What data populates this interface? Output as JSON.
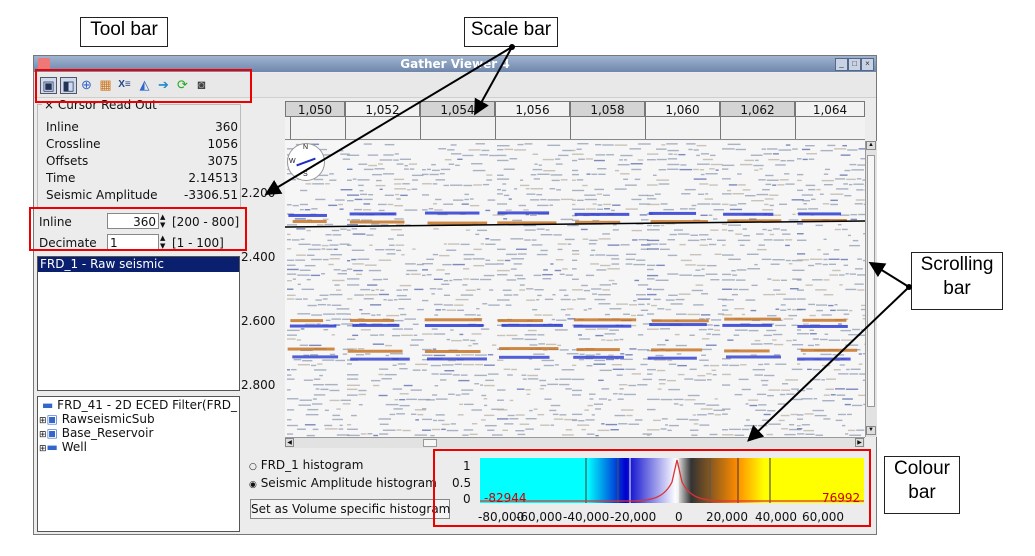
{
  "callouts": {
    "tool_bar": "Tool bar",
    "scale_bar": "Scale bar",
    "scrolling_bar": [
      "Scrolling",
      "bar"
    ],
    "colour_bar": [
      "Colour",
      "bar"
    ]
  },
  "window": {
    "title": "Gather Viewer 4"
  },
  "toolbar": {
    "icons": [
      "view-icon",
      "view2-icon",
      "crosshair-icon",
      "layers-icon",
      "xs-icon",
      "pick-icon",
      "arrow-right-icon",
      "refresh-icon",
      "camera-icon"
    ]
  },
  "cursor_readout": {
    "title": "Cursor Read Out",
    "rows": [
      {
        "label": "Inline",
        "value": "360"
      },
      {
        "label": "Crossline",
        "value": "1056"
      },
      {
        "label": "Offsets",
        "value": "3075"
      },
      {
        "label": "Time",
        "value": "2.14513"
      },
      {
        "label": "Seismic Amplitude",
        "value": "-3306.51"
      }
    ]
  },
  "controls": {
    "inline_label": "Inline",
    "inline_value": "360",
    "inline_range": "[200 - 800]",
    "decimate_label": "Decimate",
    "decimate_value": "1",
    "decimate_range": "[1 - 100]"
  },
  "volume_list": {
    "selected": "FRD_1 - Raw seismic"
  },
  "tree": [
    "FRD_41 - 2D ECED Filter(FRD_",
    "RawseismicSub",
    "Base_Reservoir",
    "Well"
  ],
  "histogram_options": {
    "opt1": "FRD_1 histogram",
    "opt2": "Seismic Amplitude histogram",
    "button": "Set as Volume specific histogram"
  },
  "scale": {
    "crosslines": [
      "1,050",
      "1,052",
      "1,054",
      "1,056",
      "1,058",
      "1,060",
      "1,062",
      "1,064"
    ],
    "times": [
      "2.200",
      "2.400",
      "2.600",
      "2.800"
    ],
    "compass": [
      "N",
      "W",
      "S"
    ]
  },
  "colour_bar": {
    "min": "-82944",
    "max": "76992",
    "yticks": [
      "1",
      "0.5",
      "0"
    ],
    "xticks": [
      "-80,000",
      "-60,000",
      "-40,000",
      "-20,000",
      "0",
      "20,000",
      "40,000",
      "60,000"
    ],
    "colors": [
      "#00ffff",
      "#0000cc",
      "#ffffff",
      "#ff8c00",
      "#ffff00"
    ]
  }
}
